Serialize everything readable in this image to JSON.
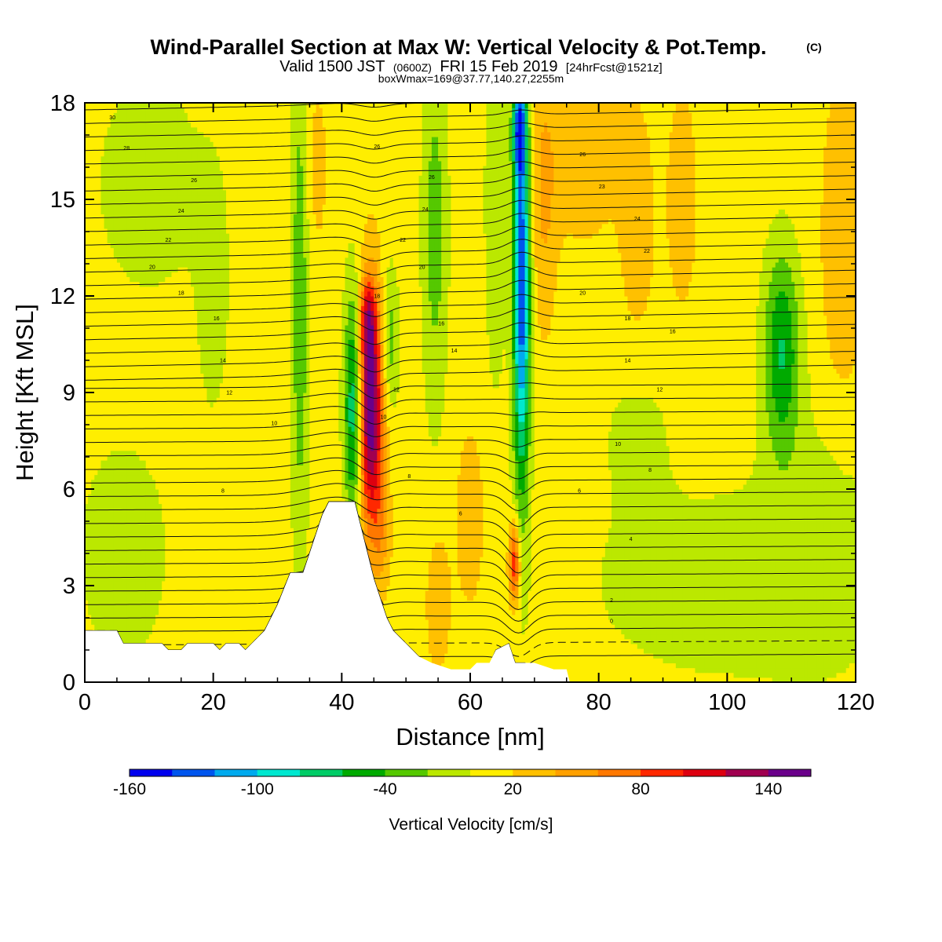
{
  "chart_data": {
    "type": "heatmap",
    "title": "Wind-Parallel Section at Max W: Vertical Velocity & Pot.Temp.",
    "title_mark": "(C)",
    "subtitle_parts": [
      "Valid 1500 JST",
      "(0600Z)",
      "FRI 15 Feb 2019",
      "[24hrFcst@1521z]"
    ],
    "subtitle2": "boxWmax=169@37.77,140.27,2255m",
    "xlabel": "Distance [nm]",
    "ylabel": "Height [Kft MSL]",
    "xlim": [
      0,
      120
    ],
    "ylim": [
      0,
      18
    ],
    "xticks": [
      0,
      20,
      40,
      60,
      80,
      100,
      120
    ],
    "yticks": [
      0,
      3,
      6,
      9,
      12,
      15,
      18
    ],
    "colorbar": {
      "label": "Vertical Velocity [cm/s]",
      "range": [
        -160,
        160
      ],
      "tick_labels": [
        -160,
        -100,
        -40,
        20,
        80,
        140
      ],
      "colors": [
        "#0000ee",
        "#0055ee",
        "#00aaee",
        "#00e8d0",
        "#00cc66",
        "#00aa00",
        "#55c800",
        "#bbe800",
        "#ffee00",
        "#ffc000",
        "#ffa000",
        "#ff7800",
        "#ff2800",
        "#dd0010",
        "#a00050",
        "#6a008a"
      ]
    },
    "background_value": 10,
    "terrain": [
      [
        0,
        1.6
      ],
      [
        5,
        1.6
      ],
      [
        6,
        1.2
      ],
      [
        12,
        1.2
      ],
      [
        13,
        1.0
      ],
      [
        15,
        1.0
      ],
      [
        16,
        1.2
      ],
      [
        20,
        1.2
      ],
      [
        21,
        1.0
      ],
      [
        22,
        1.2
      ],
      [
        24,
        1.2
      ],
      [
        25,
        1.0
      ],
      [
        26,
        1.2
      ],
      [
        28,
        1.6
      ],
      [
        30,
        2.4
      ],
      [
        32,
        3.4
      ],
      [
        34,
        3.4
      ],
      [
        36,
        4.6
      ],
      [
        37,
        5.2
      ],
      [
        38,
        5.6
      ],
      [
        42,
        5.6
      ],
      [
        43,
        4.8
      ],
      [
        44,
        4.0
      ],
      [
        45,
        3.2
      ],
      [
        46,
        2.6
      ],
      [
        47,
        2.0
      ],
      [
        48,
        1.6
      ],
      [
        50,
        1.2
      ],
      [
        52,
        0.8
      ],
      [
        54,
        0.6
      ],
      [
        57,
        0.4
      ],
      [
        60,
        0.4
      ],
      [
        61,
        0.6
      ],
      [
        63,
        0.6
      ],
      [
        64,
        1.0
      ],
      [
        66,
        1.2
      ],
      [
        67,
        0.6
      ],
      [
        70,
        0.6
      ],
      [
        73,
        0.4
      ],
      [
        75,
        0.4
      ],
      [
        75.5,
        0
      ]
    ],
    "features": [
      {
        "x": 44.5,
        "y": 8.5,
        "sx": 1.4,
        "sy": 2.6,
        "amp": 150
      },
      {
        "x": 44.0,
        "y": 11.3,
        "sx": 0.9,
        "sy": 0.8,
        "amp": 60
      },
      {
        "x": 66.9,
        "y": 3.7,
        "sx": 0.6,
        "sy": 0.9,
        "amp": 95
      },
      {
        "x": 46.2,
        "y": 4.5,
        "sx": 1.0,
        "sy": 1.2,
        "amp": 30
      },
      {
        "x": 41.8,
        "y": 8.5,
        "sx": 1.0,
        "sy": 2.6,
        "amp": -95
      },
      {
        "x": 47.4,
        "y": 10.6,
        "sx": 1.0,
        "sy": 1.6,
        "amp": -45
      },
      {
        "x": 68.0,
        "y": 12.5,
        "sx": 0.9,
        "sy": 4.5,
        "amp": -150
      },
      {
        "x": 67.6,
        "y": 17.2,
        "sx": 0.7,
        "sy": 1.0,
        "amp": -100
      },
      {
        "x": 108.5,
        "y": 10.3,
        "sx": 2.0,
        "sy": 2.2,
        "amp": -70
      },
      {
        "x": 33.5,
        "y": 12.0,
        "sx": 1.0,
        "sy": 6.0,
        "amp": -45
      },
      {
        "x": 54.5,
        "y": 14.0,
        "sx": 1.4,
        "sy": 4.0,
        "amp": -40
      },
      {
        "x": 64.0,
        "y": 15.0,
        "sx": 1.2,
        "sy": 4.0,
        "amp": -30
      },
      {
        "x": 10.0,
        "y": 15.5,
        "sx": 6.0,
        "sy": 2.5,
        "amp": -22
      },
      {
        "x": 20.0,
        "y": 12.0,
        "sx": 2.0,
        "sy": 3.0,
        "amp": -18
      },
      {
        "x": 6.0,
        "y": 4.0,
        "sx": 6.0,
        "sy": 3.0,
        "amp": -18
      },
      {
        "x": 100.0,
        "y": 3.0,
        "sx": 18.0,
        "sy": 2.5,
        "amp": -18
      },
      {
        "x": 86.0,
        "y": 8.0,
        "sx": 4.0,
        "sy": 1.8,
        "amp": -15
      },
      {
        "x": 115.0,
        "y": 5.0,
        "sx": 6.0,
        "sy": 3.0,
        "amp": -15
      },
      {
        "x": 55.0,
        "y": 2.5,
        "sx": 1.4,
        "sy": 1.6,
        "amp": 25
      },
      {
        "x": 60.0,
        "y": 5.0,
        "sx": 1.6,
        "sy": 2.0,
        "amp": 25
      },
      {
        "x": 71.5,
        "y": 15.0,
        "sx": 1.4,
        "sy": 3.0,
        "amp": 30
      },
      {
        "x": 77.5,
        "y": 16.5,
        "sx": 4.0,
        "sy": 2.0,
        "amp": 25
      },
      {
        "x": 86.0,
        "y": 14.0,
        "sx": 2.0,
        "sy": 3.0,
        "amp": 20
      },
      {
        "x": 93.0,
        "y": 15.0,
        "sx": 2.0,
        "sy": 3.0,
        "amp": 18
      },
      {
        "x": 118.0,
        "y": 13.5,
        "sx": 2.5,
        "sy": 4.0,
        "amp": 25
      },
      {
        "x": 36.0,
        "y": 16.0,
        "sx": 1.4,
        "sy": 2.0,
        "amp": 18
      },
      {
        "x": 40.0,
        "y": 3.5,
        "sx": 1.0,
        "sy": 1.5,
        "amp": 15
      }
    ],
    "contour_labels": [
      {
        "text": "30",
        "x": 4.3,
        "y": 17.55
      },
      {
        "text": "28",
        "x": 6.5,
        "y": 16.6
      },
      {
        "text": "26",
        "x": 17.0,
        "y": 15.6
      },
      {
        "text": "24",
        "x": 15.0,
        "y": 14.65
      },
      {
        "text": "22",
        "x": 13.0,
        "y": 13.75
      },
      {
        "text": "20",
        "x": 10.5,
        "y": 12.9
      },
      {
        "text": "18",
        "x": 15.0,
        "y": 12.1
      },
      {
        "text": "16",
        "x": 20.5,
        "y": 11.3
      },
      {
        "text": "14",
        "x": 21.5,
        "y": 10.0
      },
      {
        "text": "12",
        "x": 22.5,
        "y": 9.0
      },
      {
        "text": "10",
        "x": 29.5,
        "y": 8.05
      },
      {
        "text": "8",
        "x": 21.5,
        "y": 5.95
      },
      {
        "text": "26",
        "x": 45.5,
        "y": 16.65
      },
      {
        "text": "26",
        "x": 54.0,
        "y": 15.7
      },
      {
        "text": "24",
        "x": 53.0,
        "y": 14.7
      },
      {
        "text": "22",
        "x": 49.5,
        "y": 13.75
      },
      {
        "text": "20",
        "x": 52.5,
        "y": 12.9
      },
      {
        "text": "18",
        "x": 45.5,
        "y": 12.0
      },
      {
        "text": "16",
        "x": 55.5,
        "y": 11.15
      },
      {
        "text": "14",
        "x": 57.5,
        "y": 10.3
      },
      {
        "text": "12",
        "x": 48.5,
        "y": 9.1
      },
      {
        "text": "10",
        "x": 46.5,
        "y": 8.25
      },
      {
        "text": "8",
        "x": 50.5,
        "y": 6.4
      },
      {
        "text": "6",
        "x": 58.5,
        "y": 5.25
      },
      {
        "text": "26",
        "x": 77.5,
        "y": 16.4
      },
      {
        "text": "23",
        "x": 80.5,
        "y": 15.4
      },
      {
        "text": "24",
        "x": 86.0,
        "y": 14.4
      },
      {
        "text": "22",
        "x": 87.5,
        "y": 13.4
      },
      {
        "text": "20",
        "x": 77.5,
        "y": 12.1
      },
      {
        "text": "18",
        "x": 84.5,
        "y": 11.3
      },
      {
        "text": "16",
        "x": 91.5,
        "y": 10.9
      },
      {
        "text": "14",
        "x": 84.5,
        "y": 10.0
      },
      {
        "text": "12",
        "x": 89.5,
        "y": 9.1
      },
      {
        "text": "10",
        "x": 83.0,
        "y": 7.4
      },
      {
        "text": "8",
        "x": 88.0,
        "y": 6.6
      },
      {
        "text": "6",
        "x": 77.0,
        "y": 5.95
      },
      {
        "text": "4",
        "x": 85.0,
        "y": 4.45
      },
      {
        "text": "2",
        "x": 82.0,
        "y": 2.55
      },
      {
        "text": "0",
        "x": 82.0,
        "y": 1.9
      }
    ]
  }
}
